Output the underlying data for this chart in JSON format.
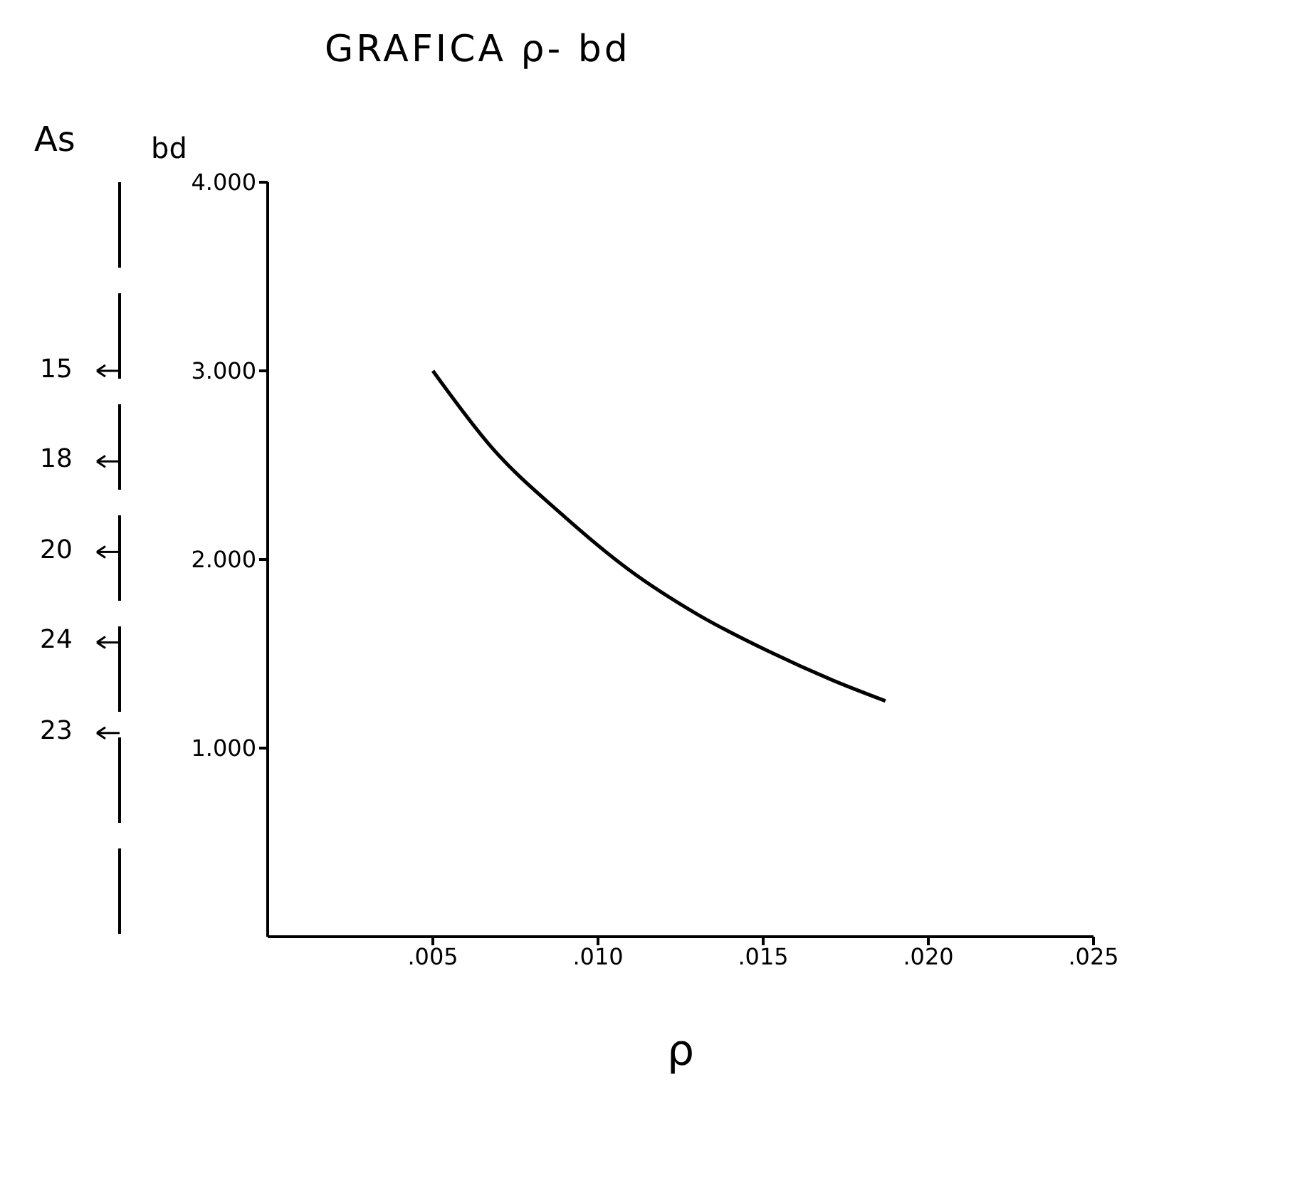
{
  "chart_data": {
    "type": "line",
    "title": "GRAFICA ρ- bd",
    "xlabel": "ρ",
    "ylabel": "bd",
    "annotations": [
      "As",
      "15",
      "18",
      "20",
      "24",
      "23"
    ],
    "x": [
      0.005,
      0.0068,
      0.0089,
      0.0109,
      0.013,
      0.0152,
      0.0171,
      0.0187
    ],
    "series": [
      {
        "color": "#000000",
        "values": [
          3000,
          2590,
          2240,
          1950,
          1710,
          1510,
          1360,
          1250
        ]
      }
    ],
    "xlim": [
      0,
      0.025
    ],
    "xticks": [
      {
        "value": 0.005,
        "label": ".005"
      },
      {
        "value": 0.01,
        "label": ".010"
      },
      {
        "value": 0.015,
        "label": ".015"
      },
      {
        "value": 0.02,
        "label": ".020"
      },
      {
        "value": 0.025,
        "label": ".025"
      }
    ],
    "ylim": [
      0,
      4000
    ],
    "yticks": [
      {
        "value": 1000,
        "label": "1.000"
      },
      {
        "value": 2000,
        "label": "2.000"
      },
      {
        "value": 3000,
        "label": "3.000"
      },
      {
        "value": 4000,
        "label": "4.000"
      }
    ],
    "grid": false,
    "legend": false,
    "marker": "none",
    "line_style": "solid"
  }
}
